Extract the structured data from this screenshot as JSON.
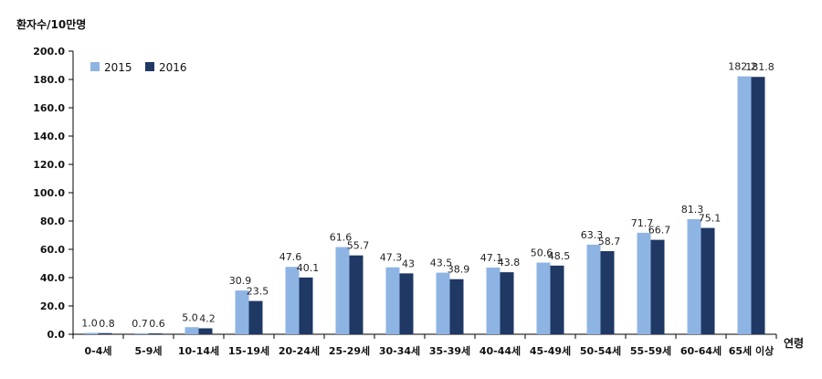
{
  "chart_data": {
    "type": "bar",
    "ylabel": "환자수/10만명",
    "xlabel": "연령",
    "ylim": [
      0,
      200
    ],
    "yticks": [
      "0.0",
      "20.0",
      "40.0",
      "60.0",
      "80.0",
      "100.0",
      "120.0",
      "140.0",
      "160.0",
      "180.0",
      "200.0"
    ],
    "categories": [
      "0-4세",
      "5-9세",
      "10-14세",
      "15-19세",
      "20-24세",
      "25-29세",
      "30-34세",
      "35-39세",
      "40-44세",
      "45-49세",
      "50-54세",
      "55-59세",
      "60-64세",
      "65세 이상"
    ],
    "series": [
      {
        "name": "2015",
        "color": "#8EB4E3",
        "values": [
          1.0,
          0.7,
          5.0,
          30.9,
          47.6,
          61.6,
          47.3,
          43.5,
          47.1,
          50.6,
          63.3,
          71.7,
          81.3,
          182.2
        ],
        "labels": [
          "1.0",
          "0.7",
          "5.0",
          "30.9",
          "47.6",
          "61.6",
          "47.3",
          "43.5",
          "47.1",
          "50.6",
          "63.3",
          "71.7",
          "81.3",
          "182.2"
        ]
      },
      {
        "name": "2016",
        "color": "#1F3864",
        "values": [
          0.8,
          0.6,
          4.2,
          23.5,
          40.1,
          55.7,
          43,
          38.9,
          43.8,
          48.5,
          58.7,
          66.7,
          75.1,
          181.8
        ],
        "labels": [
          "0.8",
          "0.6",
          "4.2",
          "23.5",
          "40.1",
          "55.7",
          "43",
          "38.9",
          "43.8",
          "48.5",
          "58.7",
          "66.7",
          "75.1",
          "181.8"
        ]
      }
    ],
    "legend": "top-left",
    "grid": false
  }
}
